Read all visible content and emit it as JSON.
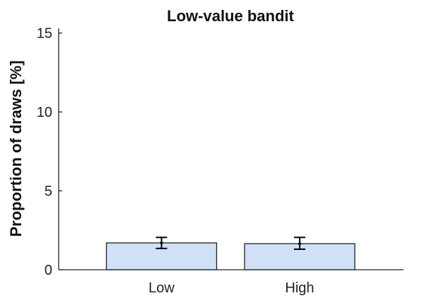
{
  "chart_data": {
    "type": "bar",
    "title": "Low-value bandit",
    "xlabel": "",
    "ylabel": "Proportion of draws [%]",
    "categories": [
      "Low",
      "High"
    ],
    "values": [
      1.7,
      1.65
    ],
    "error_low": [
      1.35,
      1.3
    ],
    "error_high": [
      2.05,
      2.05
    ],
    "ylim": [
      0,
      15.3
    ],
    "yticks": [
      0,
      5,
      10,
      15
    ],
    "grid": false,
    "bar_color": "#cfe0f7"
  }
}
